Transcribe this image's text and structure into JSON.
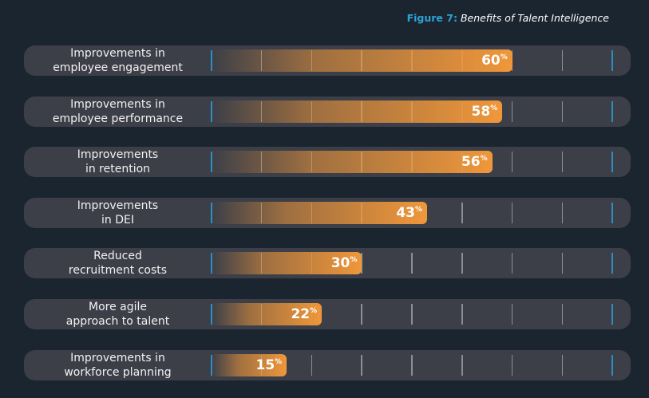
{
  "title": {
    "prefix": "Figure 7:",
    "text": "Benefits of Talent Intelligence"
  },
  "colors": {
    "bar": "#f0973a",
    "title_accent": "#2ba3d6",
    "background": "#1b2530",
    "track": "#3c3f48"
  },
  "chart_data": {
    "type": "bar",
    "orientation": "horizontal",
    "title": "Figure 7: Benefits of Talent Intelligence",
    "categories": [
      "Improvements in\nemployee engagement",
      "Improvements in\nemployee performance",
      "Improvements\nin retention",
      "Improvements\nin DEI",
      "Reduced\nrecruitment costs",
      "More agile\napproach to talent",
      "Improvements in\nworkforce planning"
    ],
    "values": [
      60,
      58,
      56,
      43,
      30,
      22,
      15
    ],
    "labels": [
      "60",
      "58",
      "56",
      "43",
      "30",
      "22",
      "15"
    ],
    "unit": "%",
    "xlim": [
      0,
      80
    ],
    "grid_step": 10
  }
}
